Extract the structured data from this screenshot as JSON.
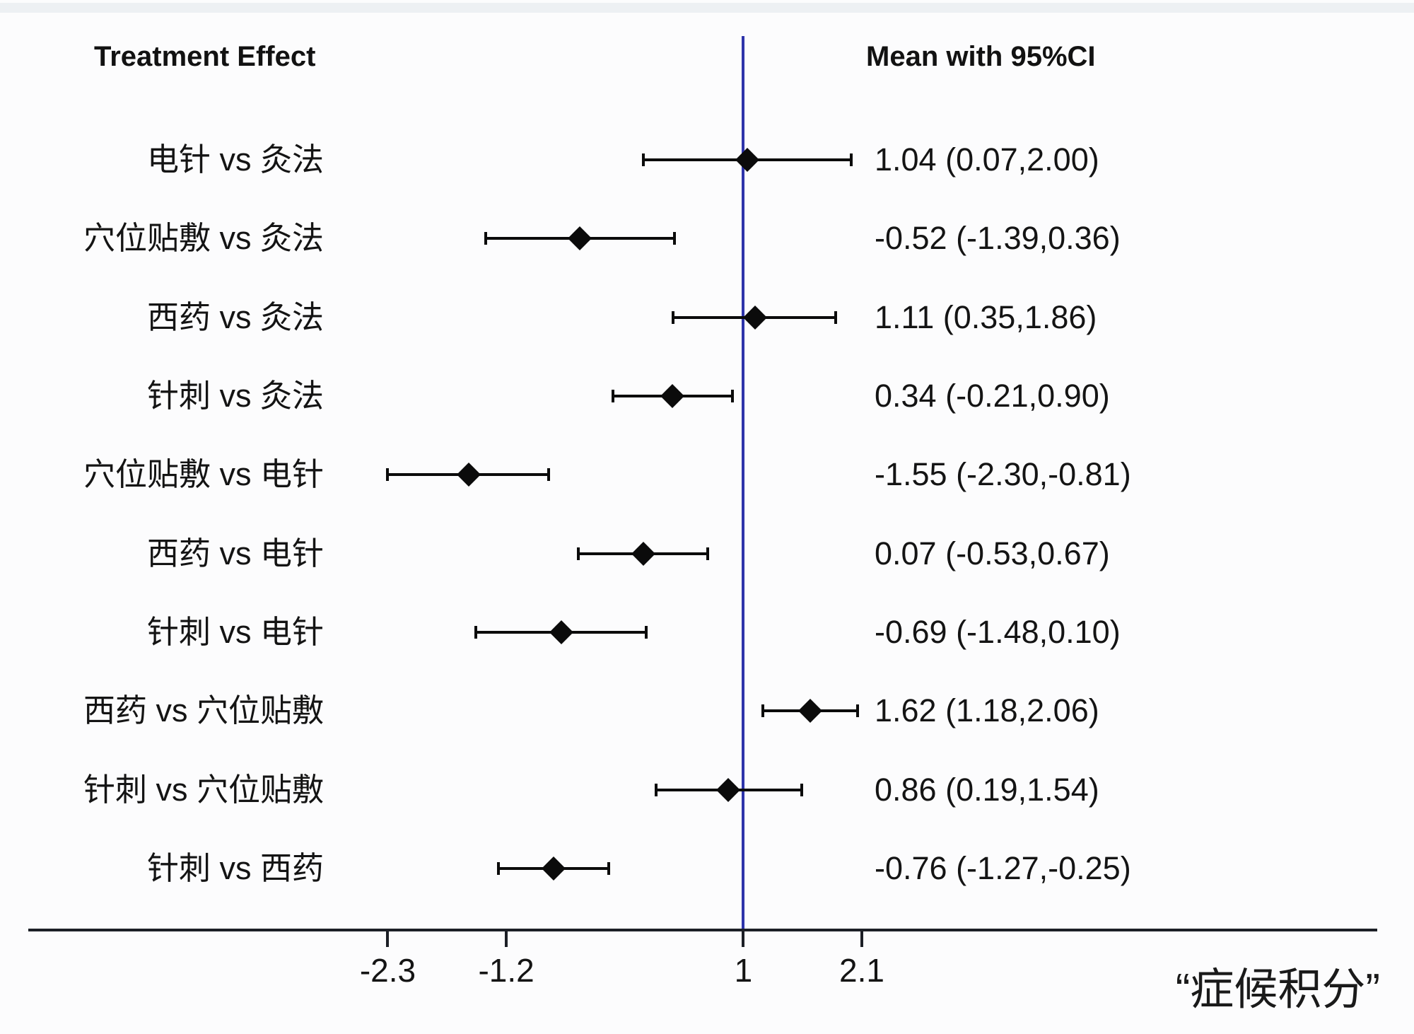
{
  "header": {
    "left_title": "Treatment Effect",
    "right_title": "Mean with 95%CI"
  },
  "chart_data": {
    "type": "forest",
    "title": "Treatment Effect",
    "value_column_header": "Mean with 95%CI",
    "xlabel": "“症候积分”",
    "xlim": [
      -5.6,
      6.9
    ],
    "grid": false,
    "reference_line_x": 1,
    "x_ticks": [
      {
        "value": -2.3,
        "label": "-2.3"
      },
      {
        "value": -1.2,
        "label": "-1.2"
      },
      {
        "value": 1,
        "label": "1"
      },
      {
        "value": 2.1,
        "label": "2.1"
      }
    ],
    "rows": [
      {
        "label": "电针 vs 灸法",
        "mean": 1.04,
        "ci_low": 0.07,
        "ci_high": 2.0,
        "value_text": "1.04 (0.07,2.00)"
      },
      {
        "label": "穴位贴敷 vs 灸法",
        "mean": -0.52,
        "ci_low": -1.39,
        "ci_high": 0.36,
        "value_text": "-0.52 (-1.39,0.36)"
      },
      {
        "label": "西药 vs 灸法",
        "mean": 1.11,
        "ci_low": 0.35,
        "ci_high": 1.86,
        "value_text": "1.11 (0.35,1.86)"
      },
      {
        "label": "针刺 vs 灸法",
        "mean": 0.34,
        "ci_low": -0.21,
        "ci_high": 0.9,
        "value_text": "0.34 (-0.21,0.90)"
      },
      {
        "label": "穴位贴敷 vs 电针",
        "mean": -1.55,
        "ci_low": -2.3,
        "ci_high": -0.81,
        "value_text": "-1.55 (-2.30,-0.81)"
      },
      {
        "label": "西药 vs 电针",
        "mean": 0.07,
        "ci_low": -0.53,
        "ci_high": 0.67,
        "value_text": "0.07 (-0.53,0.67)"
      },
      {
        "label": "针刺 vs 电针",
        "mean": -0.69,
        "ci_low": -1.48,
        "ci_high": 0.1,
        "value_text": "-0.69 (-1.48,0.10)"
      },
      {
        "label": "西药 vs 穴位贴敷",
        "mean": 1.62,
        "ci_low": 1.18,
        "ci_high": 2.06,
        "value_text": "1.62 (1.18,2.06)"
      },
      {
        "label": "针刺 vs 穴位贴敷",
        "mean": 0.86,
        "ci_low": 0.19,
        "ci_high": 1.54,
        "value_text": "0.86 (0.19,1.54)"
      },
      {
        "label": "针刺 vs 西药",
        "mean": -0.76,
        "ci_low": -1.27,
        "ci_high": -0.25,
        "value_text": "-0.76 (-1.27,-0.25)"
      }
    ],
    "colors": {
      "reference_line": "#2e34aa",
      "marker": "#0b0b0b",
      "axis": "#1c1f26",
      "text": "#141414"
    }
  }
}
